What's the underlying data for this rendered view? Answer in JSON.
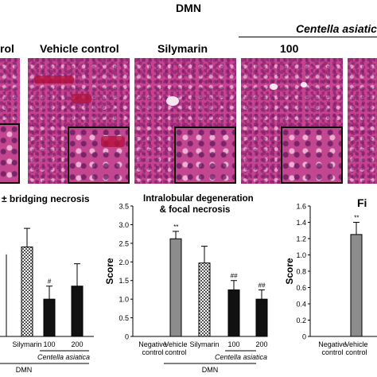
{
  "header": {
    "dmn": "DMN",
    "centella": "Centella asiatica",
    "neg_partial": "rol",
    "vehicle": "Vehicle control",
    "silymarin": "Silymarin",
    "dose100": "100"
  },
  "chart_data": [
    {
      "type": "bar",
      "title": "± bridging necrosis",
      "categories": [
        "Silymarin",
        "100",
        "200"
      ],
      "series": [
        {
          "values": [
            2.4,
            1.0,
            1.35
          ],
          "errors": [
            0.5,
            0.35,
            0.6
          ]
        }
      ],
      "annotations": [
        "",
        "#",
        ""
      ],
      "group_labels": {
        "extract": "Centella asiatica",
        "dmn": "DMN"
      }
    },
    {
      "type": "bar",
      "title_lines": [
        "Intralobular  degeneration",
        "& focal necrosis"
      ],
      "ylabel": "Score",
      "ylim": [
        0,
        3.5
      ],
      "yticks": [
        "0",
        "0.5",
        "1.0",
        "1.5",
        "2.0",
        "2.5",
        "3.0",
        "3.5"
      ],
      "categories": [
        "Negative control",
        "Vehicle control",
        "Silymarin",
        "100",
        "200"
      ],
      "series": [
        {
          "values": [
            0,
            2.62,
            1.97,
            1.25,
            1.0
          ],
          "errors": [
            0,
            0.2,
            0.45,
            0.25,
            0.25
          ]
        }
      ],
      "annotations": [
        "",
        "**",
        "",
        "##",
        "##"
      ],
      "group_labels": {
        "extract": "Centella asiatica",
        "dmn": "DMN"
      }
    },
    {
      "type": "bar",
      "title": "Fi",
      "ylabel": "Score",
      "ylim": [
        0,
        1.6
      ],
      "yticks": [
        "0",
        "0.2",
        "0.4",
        "0.6",
        "0.8",
        "1.0",
        "1.2",
        "1.4",
        "1.6"
      ],
      "categories": [
        "Negative control",
        "Vehicle control"
      ],
      "series": [
        {
          "values": [
            0,
            1.25
          ],
          "errors": [
            0,
            0.15
          ]
        }
      ],
      "annotations": [
        "",
        "**"
      ]
    }
  ],
  "colors": {
    "tissue": "#c8438f",
    "vehicle_bar": "#8c8c8c",
    "treated_bar": "#111111"
  }
}
